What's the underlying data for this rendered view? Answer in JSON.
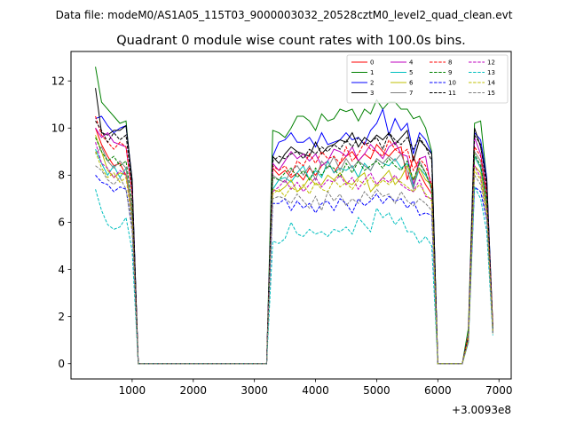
{
  "figure": {
    "suptitle": "Data file: modeM0/AS1A05_115T03_9000003032_20528cztM0_level2_quad_clean.evt"
  },
  "chart_data": {
    "type": "line",
    "title": "Quadrant 0 module wise count rates with 100.0s bins.",
    "xlabel": "",
    "ylabel": "",
    "x_offset_label": "+3.0093e8",
    "xlim": [
      0,
      7200
    ],
    "ylim": [
      -0.65,
      13.25
    ],
    "xticks": [
      1000,
      2000,
      3000,
      4000,
      5000,
      6000,
      7000
    ],
    "yticks": [
      0,
      2,
      4,
      6,
      8,
      10,
      12
    ],
    "grid": false,
    "legend": {
      "placement": "top-right",
      "columns": 4
    },
    "x": [
      400,
      500,
      600,
      700,
      800,
      900,
      1000,
      1100,
      1200,
      1300,
      1400,
      1500,
      1600,
      1700,
      1800,
      1900,
      2000,
      2100,
      2200,
      2300,
      2400,
      2500,
      2600,
      2700,
      2800,
      2900,
      3000,
      3100,
      3200,
      3300,
      3400,
      3500,
      3600,
      3700,
      3800,
      3900,
      4000,
      4100,
      4200,
      4300,
      4400,
      4500,
      4600,
      4700,
      4800,
      4900,
      5000,
      5100,
      5200,
      5300,
      5400,
      5500,
      5600,
      5700,
      5800,
      5900,
      6000,
      6100,
      6200,
      6300,
      6400,
      6500,
      6600,
      6700,
      6800,
      6900
    ],
    "series": [
      {
        "name": "0",
        "color": "#ff0000",
        "dash": false,
        "values": [
          10.0,
          9.3,
          8.8,
          8.4,
          8.5,
          8.0,
          6.5,
          0,
          0,
          0,
          0,
          0,
          0,
          0,
          0,
          0,
          0,
          0,
          0,
          0,
          0,
          0,
          0,
          0,
          0,
          0,
          0,
          0,
          0,
          8.3,
          8.0,
          8.2,
          7.9,
          8.1,
          7.8,
          8.3,
          8.0,
          8.4,
          8.6,
          8.1,
          8.5,
          8.8,
          9.0,
          8.6,
          8.9,
          8.7,
          9.3,
          9.0,
          8.8,
          9.1,
          9.2,
          7.8,
          8.8,
          8.1,
          7.6,
          7.2,
          0,
          0,
          0,
          0,
          0,
          1.2,
          8.8,
          8.3,
          7.1,
          1.3
        ]
      },
      {
        "name": "1",
        "color": "#008000",
        "dash": false,
        "values": [
          12.6,
          11.1,
          10.8,
          10.5,
          10.2,
          10.3,
          7.5,
          0,
          0,
          0,
          0,
          0,
          0,
          0,
          0,
          0,
          0,
          0,
          0,
          0,
          0,
          0,
          0,
          0,
          0,
          0,
          0,
          0,
          0,
          9.9,
          9.8,
          9.6,
          10.0,
          10.5,
          10.5,
          10.3,
          9.9,
          10.6,
          10.3,
          10.4,
          10.8,
          10.7,
          10.8,
          10.3,
          10.8,
          10.6,
          11.2,
          10.8,
          11.1,
          11.1,
          10.8,
          10.8,
          10.4,
          10.5,
          10.0,
          9.0,
          0,
          0,
          0,
          0,
          0,
          1.5,
          10.2,
          10.3,
          7.8,
          1.6
        ]
      },
      {
        "name": "2",
        "color": "#0000ff",
        "dash": false,
        "values": [
          10.4,
          10.5,
          10.1,
          9.8,
          10.0,
          10.1,
          7.8,
          0,
          0,
          0,
          0,
          0,
          0,
          0,
          0,
          0,
          0,
          0,
          0,
          0,
          0,
          0,
          0,
          0,
          0,
          0,
          0,
          0,
          0,
          8.8,
          9.4,
          9.5,
          9.8,
          9.4,
          9.4,
          9.6,
          9.2,
          9.8,
          9.3,
          9.4,
          9.5,
          9.8,
          9.5,
          9.6,
          9.3,
          9.9,
          10.2,
          10.8,
          9.7,
          10.4,
          9.9,
          10.2,
          8.9,
          9.8,
          9.5,
          8.9,
          0,
          0,
          0,
          0,
          0,
          1.2,
          9.8,
          9.5,
          7.9,
          1.5
        ]
      },
      {
        "name": "3",
        "color": "#000000",
        "dash": false,
        "values": [
          11.7,
          9.8,
          9.7,
          9.9,
          9.9,
          10.1,
          7.8,
          0,
          0,
          0,
          0,
          0,
          0,
          0,
          0,
          0,
          0,
          0,
          0,
          0,
          0,
          0,
          0,
          0,
          0,
          0,
          0,
          0,
          0,
          8.8,
          8.5,
          8.9,
          9.2,
          9.0,
          8.9,
          8.8,
          9.4,
          8.9,
          9.2,
          9.3,
          9.5,
          9.4,
          9.8,
          9.2,
          9.6,
          9.4,
          9.7,
          9.5,
          9.8,
          9.3,
          9.6,
          9.9,
          8.6,
          9.5,
          9.2,
          8.9,
          0,
          0,
          0,
          0,
          0,
          1.1,
          10.0,
          9.2,
          7.8,
          1.3
        ]
      },
      {
        "name": "4",
        "color": "#bf00bf",
        "dash": false,
        "values": [
          10.0,
          9.6,
          9.8,
          9.4,
          9.3,
          9.2,
          7.2,
          0,
          0,
          0,
          0,
          0,
          0,
          0,
          0,
          0,
          0,
          0,
          0,
          0,
          0,
          0,
          0,
          0,
          0,
          0,
          0,
          0,
          0,
          8.5,
          8.2,
          8.6,
          9.0,
          8.7,
          8.9,
          8.6,
          8.9,
          8.4,
          8.6,
          9.1,
          9.0,
          8.8,
          9.2,
          8.6,
          8.9,
          9.3,
          9.0,
          8.7,
          9.2,
          9.4,
          8.9,
          8.8,
          7.6,
          8.7,
          8.8,
          7.3,
          0,
          0,
          0,
          0,
          0,
          1.1,
          9.6,
          8.9,
          7.3,
          1.5
        ]
      },
      {
        "name": "5",
        "color": "#00bfbf",
        "dash": false,
        "values": [
          9.1,
          8.5,
          8.0,
          8.4,
          7.9,
          8.3,
          6.2,
          0,
          0,
          0,
          0,
          0,
          0,
          0,
          0,
          0,
          0,
          0,
          0,
          0,
          0,
          0,
          0,
          0,
          0,
          0,
          0,
          0,
          0,
          7.4,
          7.8,
          7.9,
          7.7,
          8.1,
          8.4,
          7.8,
          8.2,
          7.9,
          8.6,
          8.1,
          8.3,
          8.2,
          8.4,
          7.9,
          8.5,
          8.2,
          8.7,
          8.5,
          8.4,
          8.7,
          8.3,
          8.5,
          7.5,
          8.3,
          8.0,
          7.5,
          0,
          0,
          0,
          0,
          0,
          1.1,
          8.8,
          8.3,
          6.8,
          1.4
        ]
      },
      {
        "name": "6",
        "color": "#bfbf00",
        "dash": false,
        "values": [
          9.7,
          9.0,
          8.2,
          7.9,
          8.1,
          8.0,
          6.4,
          0,
          0,
          0,
          0,
          0,
          0,
          0,
          0,
          0,
          0,
          0,
          0,
          0,
          0,
          0,
          0,
          0,
          0,
          0,
          0,
          0,
          0,
          7.4,
          7.3,
          7.5,
          7.8,
          7.3,
          7.5,
          7.9,
          7.6,
          7.6,
          8.0,
          7.8,
          8.1,
          7.7,
          7.6,
          7.9,
          8.1,
          7.3,
          7.6,
          7.9,
          8.2,
          7.6,
          7.9,
          8.4,
          7.8,
          8.3,
          7.8,
          7.6,
          0,
          0,
          0,
          0,
          0,
          1.0,
          8.4,
          8.1,
          6.6,
          1.3
        ]
      },
      {
        "name": "7",
        "color": "#808080",
        "dash": false,
        "values": [
          8.9,
          9.2,
          8.6,
          8.3,
          8.6,
          8.3,
          6.5,
          0,
          0,
          0,
          0,
          0,
          0,
          0,
          0,
          0,
          0,
          0,
          0,
          0,
          0,
          0,
          0,
          0,
          0,
          0,
          0,
          0,
          0,
          8.0,
          7.8,
          7.7,
          8.2,
          8.4,
          8.0,
          8.4,
          7.8,
          8.6,
          8.3,
          8.8,
          8.2,
          8.7,
          8.3,
          8.6,
          8.4,
          8.2,
          8.7,
          8.5,
          8.8,
          8.6,
          8.9,
          8.2,
          7.4,
          8.6,
          8.1,
          7.4,
          0,
          0,
          0,
          0,
          0,
          1.1,
          9.0,
          8.6,
          7.1,
          1.4
        ]
      },
      {
        "name": "8",
        "color": "#ff0000",
        "dash": true,
        "values": [
          10.5,
          9.7,
          9.4,
          9.1,
          9.4,
          9.2,
          7.2,
          0,
          0,
          0,
          0,
          0,
          0,
          0,
          0,
          0,
          0,
          0,
          0,
          0,
          0,
          0,
          0,
          0,
          0,
          0,
          0,
          0,
          0,
          8.4,
          8.2,
          8.4,
          8.0,
          8.6,
          8.4,
          8.9,
          8.5,
          9.0,
          8.7,
          8.8,
          8.5,
          9.2,
          8.6,
          8.9,
          9.4,
          9.1,
          9.0,
          8.8,
          9.5,
          9.1,
          8.9,
          9.1,
          8.2,
          8.7,
          8.4,
          7.6,
          0,
          0,
          0,
          0,
          0,
          1.2,
          9.2,
          8.8,
          7.2,
          1.6
        ]
      },
      {
        "name": "9",
        "color": "#008000",
        "dash": true,
        "values": [
          9.6,
          9.0,
          8.6,
          8.8,
          8.4,
          8.6,
          6.8,
          0,
          0,
          0,
          0,
          0,
          0,
          0,
          0,
          0,
          0,
          0,
          0,
          0,
          0,
          0,
          0,
          0,
          0,
          0,
          0,
          0,
          0,
          7.9,
          7.8,
          8.1,
          8.3,
          7.9,
          8.2,
          7.8,
          8.3,
          8.0,
          8.4,
          8.3,
          7.9,
          8.5,
          8.1,
          8.6,
          8.2,
          8.4,
          8.6,
          8.3,
          8.7,
          8.4,
          8.2,
          8.6,
          7.8,
          8.5,
          8.1,
          7.4,
          0,
          0,
          0,
          0,
          0,
          1.0,
          8.9,
          8.4,
          6.9,
          1.4
        ]
      },
      {
        "name": "10",
        "color": "#0000ff",
        "dash": true,
        "values": [
          8.0,
          7.7,
          7.6,
          7.3,
          7.5,
          7.4,
          5.8,
          0,
          0,
          0,
          0,
          0,
          0,
          0,
          0,
          0,
          0,
          0,
          0,
          0,
          0,
          0,
          0,
          0,
          0,
          0,
          0,
          0,
          0,
          6.8,
          6.8,
          7.0,
          6.5,
          6.9,
          6.6,
          6.8,
          6.4,
          6.8,
          6.9,
          6.5,
          7.0,
          6.8,
          6.4,
          7.0,
          6.7,
          6.9,
          7.2,
          6.8,
          7.1,
          6.9,
          7.0,
          6.6,
          6.9,
          6.3,
          6.4,
          6.3,
          0,
          0,
          0,
          0,
          0,
          1.0,
          7.5,
          7.3,
          6.1,
          1.3
        ]
      },
      {
        "name": "11",
        "color": "#000000",
        "dash": true,
        "values": [
          10.3,
          9.9,
          9.4,
          9.8,
          9.5,
          9.7,
          7.5,
          0,
          0,
          0,
          0,
          0,
          0,
          0,
          0,
          0,
          0,
          0,
          0,
          0,
          0,
          0,
          0,
          0,
          0,
          0,
          0,
          0,
          0,
          8.6,
          8.8,
          8.7,
          8.9,
          9.0,
          8.7,
          9.1,
          8.9,
          9.2,
          9.0,
          9.3,
          9.1,
          9.5,
          9.2,
          9.6,
          9.3,
          9.4,
          9.6,
          9.1,
          9.8,
          9.5,
          9.3,
          9.6,
          9.1,
          9.6,
          9.2,
          8.6,
          0,
          0,
          0,
          0,
          0,
          1.1,
          9.7,
          9.3,
          7.5,
          1.5
        ]
      },
      {
        "name": "12",
        "color": "#bf00bf",
        "dash": true,
        "values": [
          9.4,
          8.5,
          8.3,
          7.9,
          8.2,
          8.0,
          6.1,
          0,
          0,
          0,
          0,
          0,
          0,
          0,
          0,
          0,
          0,
          0,
          0,
          0,
          0,
          0,
          0,
          0,
          0,
          0,
          0,
          0,
          0,
          7.3,
          7.5,
          7.8,
          7.4,
          7.7,
          7.3,
          7.6,
          7.9,
          7.5,
          7.8,
          7.7,
          8.0,
          7.6,
          7.9,
          7.4,
          7.8,
          8.1,
          7.6,
          7.9,
          7.7,
          8.0,
          7.6,
          7.4,
          7.3,
          7.8,
          7.1,
          7.0,
          0,
          0,
          0,
          0,
          0,
          1.0,
          8.4,
          7.9,
          6.5,
          1.3
        ]
      },
      {
        "name": "13",
        "color": "#00bfbf",
        "dash": true,
        "values": [
          7.4,
          6.5,
          5.9,
          5.7,
          5.8,
          6.2,
          4.8,
          0,
          0,
          0,
          0,
          0,
          0,
          0,
          0,
          0,
          0,
          0,
          0,
          0,
          0,
          0,
          0,
          0,
          0,
          0,
          0,
          0,
          0,
          5.2,
          5.1,
          5.3,
          6.0,
          5.5,
          5.4,
          5.7,
          5.5,
          5.6,
          5.4,
          5.7,
          5.6,
          5.8,
          5.5,
          6.2,
          5.9,
          5.6,
          6.6,
          6.2,
          6.4,
          5.9,
          6.2,
          5.6,
          5.6,
          5.1,
          5.4,
          5.0,
          0,
          0,
          0,
          0,
          0,
          0.9,
          7.5,
          7.0,
          5.6,
          1.2
        ]
      },
      {
        "name": "14",
        "color": "#bfbf00",
        "dash": true,
        "values": [
          9.0,
          8.3,
          7.9,
          8.1,
          7.7,
          7.9,
          6.0,
          0,
          0,
          0,
          0,
          0,
          0,
          0,
          0,
          0,
          0,
          0,
          0,
          0,
          0,
          0,
          0,
          0,
          0,
          0,
          0,
          0,
          0,
          7.2,
          7.4,
          7.1,
          7.5,
          7.3,
          7.6,
          7.2,
          7.7,
          7.4,
          7.3,
          7.8,
          7.5,
          7.7,
          7.4,
          7.8,
          7.6,
          7.9,
          7.5,
          7.8,
          7.6,
          7.9,
          7.7,
          7.5,
          7.3,
          7.6,
          7.2,
          6.9,
          0,
          0,
          0,
          0,
          0,
          1.0,
          8.2,
          7.8,
          6.4,
          1.3
        ]
      },
      {
        "name": "15",
        "color": "#808080",
        "dash": true,
        "values": [
          8.4,
          8.2,
          7.8,
          7.6,
          7.9,
          7.4,
          5.6,
          0,
          0,
          0,
          0,
          0,
          0,
          0,
          0,
          0,
          0,
          0,
          0,
          0,
          0,
          0,
          0,
          0,
          0,
          0,
          0,
          0,
          0,
          7.0,
          7.1,
          7.0,
          6.8,
          7.2,
          6.9,
          6.6,
          7.1,
          6.5,
          7.3,
          6.9,
          7.2,
          6.7,
          7.0,
          6.8,
          7.3,
          7.0,
          7.4,
          7.1,
          7.2,
          6.8,
          7.3,
          6.9,
          6.7,
          7.0,
          6.8,
          6.5,
          0,
          0,
          0,
          0,
          0,
          0.9,
          8.0,
          7.6,
          6.2,
          1.3
        ]
      }
    ]
  }
}
